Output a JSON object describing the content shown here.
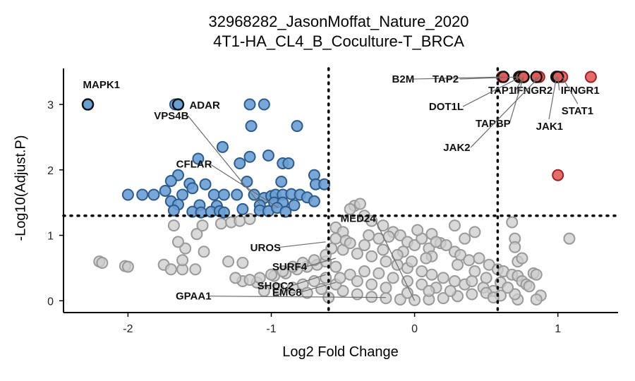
{
  "title": [
    "32968282_JasonMoffat_Nature_2020",
    "4T1-HA_CL4_B_Coculture-T_BRCA"
  ],
  "chart_data": {
    "type": "scatter",
    "title": "32968282_JasonMoffat_Nature_2020 4T1-HA_CL4_B_Coculture-T_BRCA",
    "xlabel": "Log2 Fold Change",
    "ylabel": "-Log10(Adjust.P)",
    "xlim": [
      -2.45,
      1.42
    ],
    "ylim": [
      -0.18,
      3.55
    ],
    "x_ticks": [
      -2,
      -1,
      0,
      1
    ],
    "y_ticks": [
      0,
      1,
      2,
      3
    ],
    "thresholds": {
      "x": [
        -0.6,
        0.58
      ],
      "y": 1.3
    },
    "colors": {
      "down": "#6a9fd4",
      "down_stroke": "#2d5b8a",
      "up": "#e05c5c",
      "up_stroke": "#9b2222",
      "ns": "#cccccc",
      "ns_stroke": "#999999",
      "highlight_stroke": "#111111"
    },
    "series": [
      {
        "group": "down",
        "points": [
          [
            -1.15,
            3.0
          ],
          [
            -1.05,
            3.0
          ],
          [
            -1.67,
            3.0
          ],
          [
            -1.14,
            2.67
          ],
          [
            -0.82,
            2.67
          ],
          [
            -1.34,
            2.35
          ],
          [
            -1.51,
            2.17
          ],
          [
            -1.02,
            2.22
          ],
          [
            -1.15,
            2.2
          ],
          [
            -0.92,
            2.1
          ],
          [
            -0.88,
            2.1
          ],
          [
            -1.22,
            2.1
          ],
          [
            -0.7,
            1.92
          ],
          [
            -1.65,
            1.92
          ],
          [
            -1.7,
            1.83
          ],
          [
            -1.57,
            1.79
          ],
          [
            -1.46,
            1.78
          ],
          [
            -1.17,
            1.82
          ],
          [
            -0.93,
            1.82
          ],
          [
            -0.69,
            1.78
          ],
          [
            -0.63,
            1.78
          ],
          [
            -2.0,
            1.62
          ],
          [
            -1.9,
            1.62
          ],
          [
            -1.82,
            1.62
          ],
          [
            -1.74,
            1.68
          ],
          [
            -1.62,
            1.62
          ],
          [
            -1.55,
            1.72
          ],
          [
            -1.4,
            1.62
          ],
          [
            -1.33,
            1.62
          ],
          [
            -1.24,
            1.62
          ],
          [
            -1.12,
            1.62
          ],
          [
            -1.05,
            1.57
          ],
          [
            -1.0,
            1.6
          ],
          [
            -0.97,
            1.62
          ],
          [
            -0.92,
            1.62
          ],
          [
            -0.86,
            1.63
          ],
          [
            -0.8,
            1.62
          ],
          [
            -0.75,
            1.58
          ],
          [
            -1.7,
            1.52
          ],
          [
            -1.65,
            1.47
          ],
          [
            -1.5,
            1.46
          ],
          [
            -1.38,
            1.45
          ],
          [
            -1.08,
            1.46
          ],
          [
            -0.98,
            1.5
          ],
          [
            -0.92,
            1.5
          ],
          [
            -0.84,
            1.46
          ],
          [
            -0.7,
            1.52
          ],
          [
            -1.68,
            1.38
          ],
          [
            -1.55,
            1.36
          ],
          [
            -1.49,
            1.35
          ],
          [
            -1.42,
            1.36
          ],
          [
            -1.36,
            1.37
          ],
          [
            -1.33,
            1.35
          ],
          [
            -1.2,
            1.4
          ],
          [
            -1.08,
            1.38
          ],
          [
            -1.02,
            1.37
          ],
          [
            -0.96,
            1.42
          ],
          [
            -0.9,
            1.36
          ]
        ]
      },
      {
        "group": "up",
        "points": [
          [
            0.61,
            3.42
          ],
          [
            0.62,
            3.42
          ],
          [
            0.73,
            3.42
          ],
          [
            0.74,
            3.42
          ],
          [
            0.76,
            3.42
          ],
          [
            0.85,
            3.42
          ],
          [
            0.87,
            3.42
          ],
          [
            0.99,
            3.42
          ],
          [
            1.0,
            3.42
          ],
          [
            1.03,
            3.42
          ],
          [
            1.23,
            3.42
          ],
          [
            1.0,
            1.92
          ]
        ]
      },
      {
        "group": "ns",
        "points": [
          [
            -2.2,
            0.6
          ],
          [
            -2.18,
            0.58
          ],
          [
            -2.02,
            0.53
          ],
          [
            -2.0,
            0.52
          ],
          [
            -1.75,
            0.55
          ],
          [
            -1.7,
            0.48
          ],
          [
            -1.62,
            0.48
          ],
          [
            -1.62,
            0.62
          ],
          [
            -1.53,
            0.48
          ],
          [
            -1.6,
            0.8
          ],
          [
            -1.47,
            0.75
          ],
          [
            -1.3,
            0.6
          ],
          [
            -1.2,
            0.58
          ],
          [
            -1.65,
            0.9
          ],
          [
            -1.52,
            1.02
          ],
          [
            -1.68,
            1.15
          ],
          [
            -1.48,
            1.15
          ],
          [
            -1.35,
            1.18
          ],
          [
            -1.28,
            1.2
          ],
          [
            -1.22,
            1.22
          ],
          [
            -1.15,
            1.25
          ],
          [
            -1.1,
            0.28
          ],
          [
            -1.2,
            0.3
          ],
          [
            -1.25,
            0.35
          ],
          [
            -0.98,
            0.38
          ],
          [
            -0.9,
            0.42
          ],
          [
            -0.82,
            0.48
          ],
          [
            -0.75,
            0.52
          ],
          [
            -0.68,
            0.55
          ],
          [
            -0.62,
            0.6
          ],
          [
            -0.55,
            1.12
          ],
          [
            -0.5,
            1.05
          ],
          [
            -0.42,
            1.45
          ],
          [
            -0.38,
            1.48
          ],
          [
            -0.45,
            1.4
          ],
          [
            -0.35,
            1.3
          ],
          [
            -0.3,
            1.22
          ],
          [
            -0.22,
            1.15
          ],
          [
            -0.15,
            1.05
          ],
          [
            -0.1,
            1.0
          ],
          [
            -0.05,
            0.9
          ],
          [
            0.0,
            0.85
          ],
          [
            0.05,
            0.95
          ],
          [
            0.1,
            0.8
          ],
          [
            0.18,
            0.88
          ],
          [
            0.22,
            0.85
          ],
          [
            0.28,
            0.75
          ],
          [
            0.32,
            0.7
          ],
          [
            0.38,
            0.62
          ],
          [
            0.45,
            0.65
          ],
          [
            0.52,
            0.55
          ],
          [
            0.58,
            0.48
          ],
          [
            0.62,
            0.45
          ],
          [
            0.68,
            0.4
          ],
          [
            0.72,
            0.38
          ],
          [
            0.75,
            0.3
          ],
          [
            0.78,
            0.25
          ],
          [
            0.8,
            0.22
          ],
          [
            0.83,
            0.42
          ],
          [
            0.72,
            0.6
          ],
          [
            0.68,
            1.2
          ],
          [
            0.7,
            0.95
          ],
          [
            0.7,
            0.82
          ],
          [
            0.75,
            0.65
          ],
          [
            0.85,
            0.4
          ],
          [
            1.08,
            0.95
          ],
          [
            0.88,
            0.08
          ],
          [
            0.85,
            0.02
          ],
          [
            0.72,
            0.02
          ],
          [
            0.7,
            0.1
          ],
          [
            0.55,
            0.15
          ],
          [
            0.48,
            0.2
          ],
          [
            0.35,
            0.25
          ],
          [
            0.28,
            0.3
          ],
          [
            0.2,
            0.35
          ],
          [
            0.12,
            0.4
          ],
          [
            0.05,
            0.45
          ],
          [
            -0.05,
            0.5
          ],
          [
            -0.12,
            0.55
          ],
          [
            -0.2,
            0.6
          ],
          [
            -0.3,
            0.68
          ],
          [
            -0.4,
            0.72
          ],
          [
            -0.5,
            0.78
          ],
          [
            -0.58,
            0.8
          ],
          [
            -0.62,
            0.7
          ],
          [
            -0.7,
            0.62
          ],
          [
            -0.78,
            0.58
          ],
          [
            -0.85,
            0.52
          ],
          [
            -0.92,
            0.45
          ],
          [
            -1.0,
            0.4
          ],
          [
            -1.08,
            0.35
          ],
          [
            -1.15,
            0.32
          ],
          [
            -0.55,
            0.95
          ],
          [
            -0.48,
            0.92
          ],
          [
            -0.32,
            1.0
          ],
          [
            -0.25,
            0.95
          ],
          [
            -0.18,
            0.98
          ],
          [
            -0.08,
            0.75
          ],
          [
            0.12,
            0.68
          ],
          [
            0.3,
            0.55
          ],
          [
            0.42,
            0.45
          ],
          [
            0.5,
            0.35
          ],
          [
            0.6,
            0.28
          ],
          [
            0.65,
            0.2
          ],
          [
            0.42,
            1.05
          ],
          [
            0.35,
            0.95
          ],
          [
            0.28,
            1.15
          ],
          [
            0.12,
            1.02
          ],
          [
            0.02,
            1.08
          ],
          [
            0.15,
            0.9
          ],
          [
            0.08,
            0.65
          ],
          [
            -0.02,
            0.6
          ],
          [
            -0.12,
            0.7
          ],
          [
            -0.22,
            0.78
          ],
          [
            -0.35,
            0.85
          ],
          [
            -0.45,
            0.88
          ],
          [
            -0.55,
            0.52
          ],
          [
            -0.62,
            0.35
          ],
          [
            -0.7,
            0.3
          ],
          [
            -0.78,
            0.25
          ],
          [
            -0.85,
            0.2
          ],
          [
            -0.95,
            0.18
          ],
          [
            -1.05,
            0.15
          ],
          [
            -0.5,
            0.15
          ],
          [
            -0.4,
            0.1
          ],
          [
            -0.3,
            0.06
          ],
          [
            -0.2,
            0.04
          ],
          [
            -0.1,
            0.02
          ],
          [
            0.0,
            0.01
          ],
          [
            0.1,
            0.02
          ],
          [
            0.2,
            0.04
          ],
          [
            0.3,
            0.07
          ],
          [
            0.4,
            0.1
          ],
          [
            0.5,
            0.12
          ],
          [
            0.6,
            0.08
          ],
          [
            -0.45,
            0.4
          ],
          [
            -0.35,
            0.45
          ],
          [
            -0.25,
            0.42
          ],
          [
            -0.15,
            0.35
          ],
          [
            -0.05,
            0.3
          ],
          [
            0.05,
            0.25
          ],
          [
            0.15,
            0.2
          ],
          [
            0.25,
            0.15
          ],
          [
            -0.55,
            0.25
          ],
          [
            -0.65,
            0.18
          ],
          [
            -0.75,
            0.12
          ],
          [
            -0.6,
            0.05
          ],
          [
            0.55,
            0.05
          ],
          [
            0.4,
            0.3
          ],
          [
            0.1,
            0.15
          ],
          [
            -0.05,
            0.12
          ],
          [
            -0.2,
            0.2
          ],
          [
            -0.3,
            0.25
          ],
          [
            -0.4,
            0.3
          ],
          [
            -0.52,
            0.35
          ]
        ]
      }
    ],
    "annotations": [
      {
        "label": "MAPK1",
        "x": -2.28,
        "y": 3.0
      },
      {
        "label": "ADAR",
        "x": -1.65,
        "y": 3.0
      },
      {
        "label": "VPS4B",
        "x": -1.08,
        "y": 1.48
      },
      {
        "label": "CFLAR",
        "x": -0.95,
        "y": 1.42
      },
      {
        "label": "UROS",
        "x": -0.62,
        "y": 0.9
      },
      {
        "label": "SURF4",
        "x": -0.55,
        "y": 0.65
      },
      {
        "label": "SHOC2",
        "x": -0.62,
        "y": 0.4
      },
      {
        "label": "EMC8",
        "x": -0.55,
        "y": 0.28
      },
      {
        "label": "GPAA1",
        "x": -0.2,
        "y": 0.05
      },
      {
        "label": "MED24",
        "x": 0.0,
        "y": 0.0
      },
      {
        "label": "B2M",
        "x": 0.62,
        "y": 3.42
      },
      {
        "label": "TAP2",
        "x": 0.73,
        "y": 3.42
      },
      {
        "label": "TAP1",
        "x": 0.76,
        "y": 3.42
      },
      {
        "label": "IFNGR2",
        "x": 0.85,
        "y": 3.42
      },
      {
        "label": "IFNGR1",
        "x": 1.0,
        "y": 3.42
      },
      {
        "label": "DOT1L",
        "x": 0.74,
        "y": 3.42
      },
      {
        "label": "TAPBP",
        "x": 0.76,
        "y": 3.42
      },
      {
        "label": "STAT1",
        "x": 1.03,
        "y": 3.42
      },
      {
        "label": "JAK1",
        "x": 0.99,
        "y": 3.42
      },
      {
        "label": "JAK2",
        "x": 0.87,
        "y": 3.42
      }
    ]
  }
}
